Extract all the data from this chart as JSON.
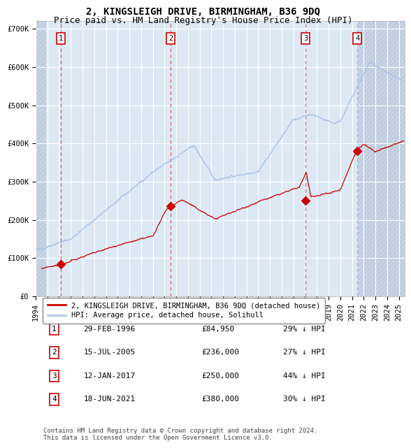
{
  "title": "2, KINGSLEIGH DRIVE, BIRMINGHAM, B36 9DQ",
  "subtitle": "Price paid vs. HM Land Registry's House Price Index (HPI)",
  "ylim": [
    0,
    720000
  ],
  "yticks": [
    0,
    100000,
    200000,
    300000,
    400000,
    500000,
    600000,
    700000
  ],
  "ytick_labels": [
    "£0",
    "£100K",
    "£200K",
    "£300K",
    "£400K",
    "£500K",
    "£600K",
    "£700K"
  ],
  "xlim_start": 1994.0,
  "xlim_end": 2025.5,
  "sale_dates": [
    1996.16,
    2005.54,
    2017.04,
    2021.46
  ],
  "sale_prices": [
    84950,
    236000,
    250000,
    380000
  ],
  "sale_labels": [
    "1",
    "2",
    "3",
    "4"
  ],
  "sale_date_strings": [
    "29-FEB-1996",
    "15-JUL-2005",
    "12-JAN-2017",
    "18-JUN-2021"
  ],
  "sale_price_strings": [
    "£84,950",
    "£236,000",
    "£250,000",
    "£380,000"
  ],
  "sale_hpi_strings": [
    "29% ↓ HPI",
    "27% ↓ HPI",
    "44% ↓ HPI",
    "30% ↓ HPI"
  ],
  "hpi_color": "#aec6e8",
  "red_line_color": "#cc0000",
  "marker_color": "#cc0000",
  "dashed_line_color": "#e06060",
  "background_color": "#dce9f5",
  "hatch_color": "#c8d4e4",
  "legend_label_red": "2, KINGSLEIGH DRIVE, BIRMINGHAM, B36 9DQ (detached house)",
  "legend_label_blue": "HPI: Average price, detached house, Solihull",
  "footer": "Contains HM Land Registry data © Crown copyright and database right 2024.\nThis data is licensed under the Open Government Licence v3.0.",
  "title_fontsize": 10,
  "subtitle_fontsize": 9,
  "tick_fontsize": 7.5,
  "hatch_left_end": 1994.9,
  "hatch_right_start": 2021.5
}
